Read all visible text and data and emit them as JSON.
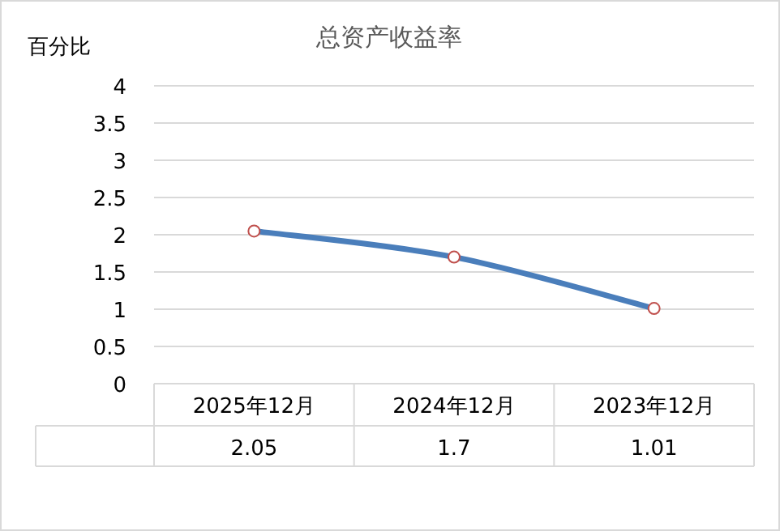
{
  "chart_data": {
    "type": "line",
    "title": "总资产收益率",
    "ylabel": "百分比",
    "categories": [
      "2025年12月",
      "2024年12月",
      "2023年12月"
    ],
    "series": [
      {
        "color": "#4a7ebb",
        "values": [
          2.05,
          1.7,
          1.01
        ]
      }
    ],
    "ylim": [
      0,
      4
    ],
    "yticks": [
      0,
      0.5,
      1,
      1.5,
      2,
      2.5,
      3,
      3.5,
      4
    ],
    "grid": "y",
    "marker": "circle",
    "data_labels": true
  }
}
